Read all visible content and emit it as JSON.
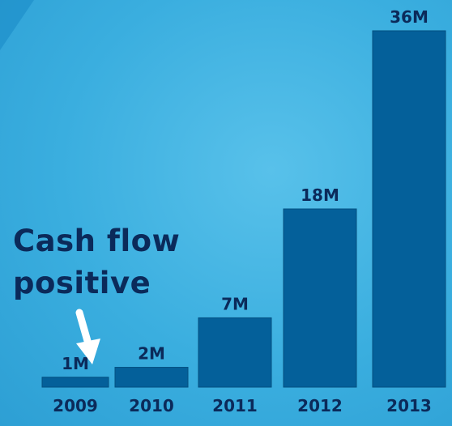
{
  "chart_data": {
    "type": "bar",
    "categories": [
      "2009",
      "2010",
      "2011",
      "2012",
      "2013"
    ],
    "values": [
      1,
      2,
      7,
      18,
      36
    ],
    "value_labels": [
      "1M",
      "2M",
      "7M",
      "18M",
      "36M"
    ],
    "title": "",
    "xlabel": "",
    "ylabel": "",
    "ylim": [
      0,
      36
    ],
    "grid": false,
    "legend": "none",
    "annotation": {
      "lines": [
        "Cash flow",
        "positive"
      ],
      "target_category": "2009"
    }
  },
  "colors": {
    "bar": "#04609a",
    "bar_edge": "#034f80",
    "text_dark": "#0b2a5a",
    "arrow": "#ffffff",
    "background": "#3fb0e0",
    "corner_shape": "#1e8cc8"
  }
}
